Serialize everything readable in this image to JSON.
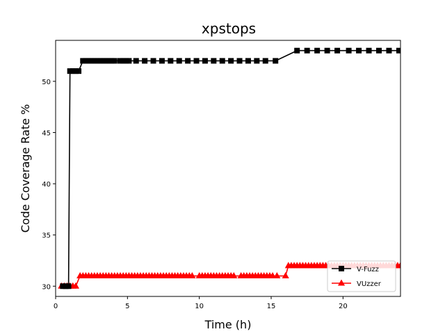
{
  "chart_data": {
    "type": "line",
    "title": "xpstops",
    "xlabel": "Time (h)",
    "ylabel": "Code Coverage Rate %",
    "xlim": [
      0,
      24
    ],
    "ylim": [
      29,
      54
    ],
    "xticks": [
      0,
      5,
      10,
      15,
      20
    ],
    "yticks": [
      30,
      35,
      40,
      45,
      50
    ],
    "grid": false,
    "legend_position": "lower-right",
    "series": [
      {
        "name": "V-Fuzz",
        "color": "#000000",
        "marker": "square",
        "points": [
          [
            0.5,
            30
          ],
          [
            0.7,
            30
          ],
          [
            0.9,
            30
          ],
          [
            1.0,
            51
          ],
          [
            1.2,
            51
          ],
          [
            1.4,
            51
          ],
          [
            1.6,
            51
          ],
          [
            1.9,
            52
          ],
          [
            2.1,
            52
          ],
          [
            2.3,
            52
          ],
          [
            2.5,
            52
          ],
          [
            2.7,
            52
          ],
          [
            2.9,
            52
          ],
          [
            3.1,
            52
          ],
          [
            3.3,
            52
          ],
          [
            3.5,
            52
          ],
          [
            3.7,
            52
          ],
          [
            3.9,
            52
          ],
          [
            4.1,
            52
          ],
          [
            4.5,
            52
          ],
          [
            4.7,
            52
          ],
          [
            4.9,
            52
          ],
          [
            5.1,
            52
          ],
          [
            5.6,
            52
          ],
          [
            6.2,
            52
          ],
          [
            6.8,
            52
          ],
          [
            7.4,
            52
          ],
          [
            8.0,
            52
          ],
          [
            8.6,
            52
          ],
          [
            9.2,
            52
          ],
          [
            9.8,
            52
          ],
          [
            10.4,
            52
          ],
          [
            11.0,
            52
          ],
          [
            11.6,
            52
          ],
          [
            12.2,
            52
          ],
          [
            12.8,
            52
          ],
          [
            13.4,
            52
          ],
          [
            14.0,
            52
          ],
          [
            14.6,
            52
          ],
          [
            15.3,
            52
          ],
          [
            16.8,
            53
          ],
          [
            17.5,
            53
          ],
          [
            18.2,
            53
          ],
          [
            18.9,
            53
          ],
          [
            19.6,
            53
          ],
          [
            20.4,
            53
          ],
          [
            21.1,
            53
          ],
          [
            21.8,
            53
          ],
          [
            22.5,
            53
          ],
          [
            23.2,
            53
          ],
          [
            23.9,
            53
          ]
        ]
      },
      {
        "name": "VUzzer",
        "color": "#ff0000",
        "marker": "triangle",
        "points": [
          [
            0.4,
            30
          ],
          [
            0.6,
            30
          ],
          [
            0.8,
            30
          ],
          [
            1.0,
            30
          ],
          [
            1.2,
            30
          ],
          [
            1.4,
            30
          ],
          [
            1.7,
            31
          ],
          [
            1.9,
            31
          ],
          [
            2.1,
            31
          ],
          [
            2.3,
            31
          ],
          [
            2.5,
            31
          ],
          [
            2.7,
            31
          ],
          [
            2.9,
            31
          ],
          [
            3.1,
            31
          ],
          [
            3.3,
            31
          ],
          [
            3.5,
            31
          ],
          [
            3.7,
            31
          ],
          [
            3.9,
            31
          ],
          [
            4.1,
            31
          ],
          [
            4.3,
            31
          ],
          [
            4.5,
            31
          ],
          [
            4.7,
            31
          ],
          [
            4.9,
            31
          ],
          [
            5.1,
            31
          ],
          [
            5.3,
            31
          ],
          [
            5.5,
            31
          ],
          [
            5.7,
            31
          ],
          [
            5.9,
            31
          ],
          [
            6.1,
            31
          ],
          [
            6.3,
            31
          ],
          [
            6.5,
            31
          ],
          [
            6.7,
            31
          ],
          [
            6.9,
            31
          ],
          [
            7.1,
            31
          ],
          [
            7.3,
            31
          ],
          [
            7.5,
            31
          ],
          [
            7.7,
            31
          ],
          [
            7.9,
            31
          ],
          [
            8.1,
            31
          ],
          [
            8.3,
            31
          ],
          [
            8.5,
            31
          ],
          [
            8.7,
            31
          ],
          [
            8.9,
            31
          ],
          [
            9.1,
            31
          ],
          [
            9.3,
            31
          ],
          [
            9.5,
            31
          ],
          [
            10.0,
            31
          ],
          [
            10.2,
            31
          ],
          [
            10.4,
            31
          ],
          [
            10.6,
            31
          ],
          [
            10.8,
            31
          ],
          [
            11.0,
            31
          ],
          [
            11.2,
            31
          ],
          [
            11.4,
            31
          ],
          [
            11.6,
            31
          ],
          [
            11.8,
            31
          ],
          [
            12.0,
            31
          ],
          [
            12.2,
            31
          ],
          [
            12.4,
            31
          ],
          [
            12.9,
            31
          ],
          [
            13.1,
            31
          ],
          [
            13.3,
            31
          ],
          [
            13.5,
            31
          ],
          [
            13.7,
            31
          ],
          [
            13.9,
            31
          ],
          [
            14.1,
            31
          ],
          [
            14.3,
            31
          ],
          [
            14.5,
            31
          ],
          [
            14.7,
            31
          ],
          [
            14.9,
            31
          ],
          [
            15.1,
            31
          ],
          [
            15.4,
            31
          ],
          [
            16.0,
            31
          ],
          [
            16.2,
            32
          ],
          [
            16.4,
            32
          ],
          [
            16.6,
            32
          ],
          [
            16.8,
            32
          ],
          [
            17.0,
            32
          ],
          [
            17.2,
            32
          ],
          [
            17.4,
            32
          ],
          [
            17.6,
            32
          ],
          [
            17.8,
            32
          ],
          [
            18.0,
            32
          ],
          [
            18.2,
            32
          ],
          [
            18.4,
            32
          ],
          [
            18.6,
            32
          ],
          [
            18.8,
            32
          ],
          [
            19.0,
            32
          ],
          [
            19.2,
            32
          ],
          [
            19.4,
            32
          ],
          [
            19.6,
            32
          ],
          [
            19.8,
            32
          ],
          [
            20.0,
            32
          ],
          [
            20.2,
            32
          ],
          [
            20.4,
            32
          ],
          [
            20.6,
            32
          ],
          [
            20.8,
            32
          ],
          [
            21.0,
            32
          ],
          [
            21.2,
            32
          ],
          [
            21.4,
            32
          ],
          [
            21.6,
            32
          ],
          [
            21.8,
            32
          ],
          [
            22.0,
            32
          ],
          [
            22.2,
            32
          ],
          [
            22.4,
            32
          ],
          [
            22.6,
            32
          ],
          [
            22.8,
            32
          ],
          [
            23.0,
            32
          ],
          [
            23.2,
            32
          ],
          [
            23.4,
            32
          ],
          [
            23.6,
            32
          ],
          [
            23.8,
            32
          ],
          [
            24.0,
            32
          ]
        ]
      }
    ]
  }
}
